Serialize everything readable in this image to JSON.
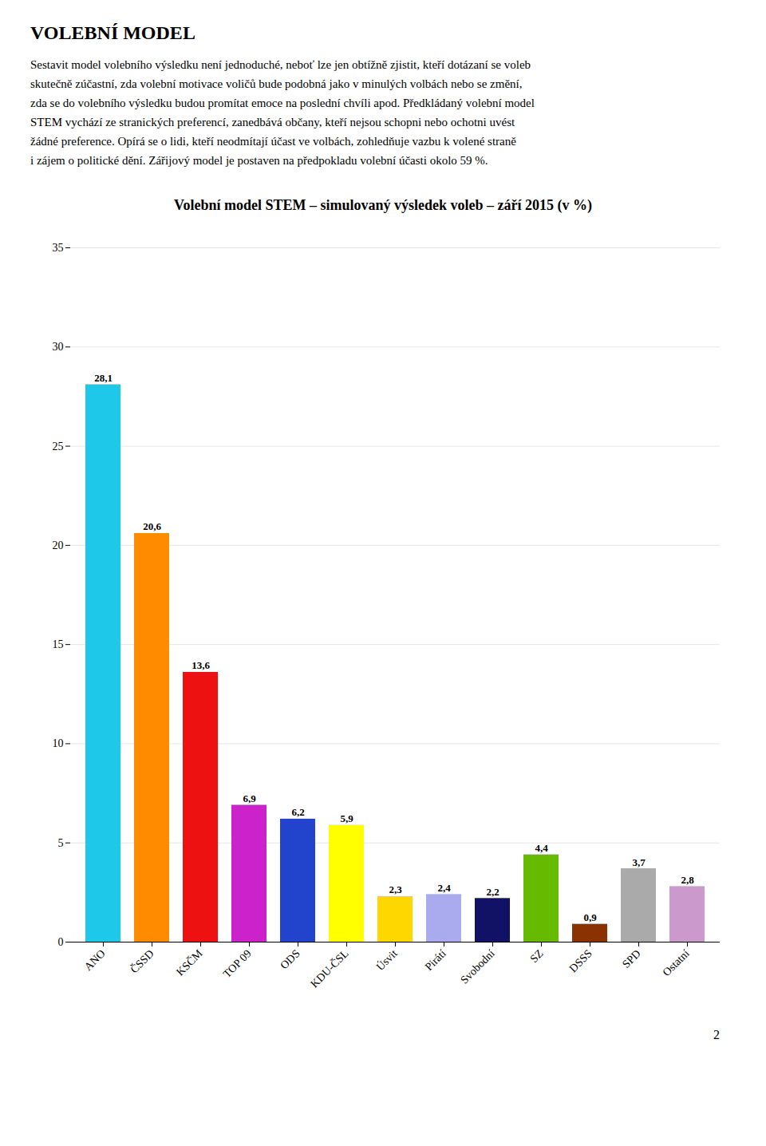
{
  "chart_data": {
    "type": "bar",
    "title": "Volební model STEM – simulovaný výsledek voleb – září 2015 (v %)",
    "categories": [
      "ANO",
      "ČSSD",
      "KSČM",
      "TOP 09",
      "ODS",
      "KDU-ČSL",
      "Úsvit",
      "Pirátí",
      "Svobodní",
      "SZ",
      "DSSS",
      "SPD",
      "Ostatní"
    ],
    "values": [
      28.1,
      20.6,
      13.6,
      6.9,
      6.2,
      5.9,
      2.3,
      2.4,
      2.2,
      4.4,
      0.9,
      3.7,
      2.8
    ],
    "value_labels": [
      "28,1",
      "20,6",
      "13,6",
      "6,9",
      "6,2",
      "5,9",
      "2,3",
      "2,4",
      "2,2",
      "4,4",
      "0,9",
      "3,7",
      "2,8"
    ],
    "colors": [
      "#1EC8E8",
      "#FF8C00",
      "#EE1111",
      "#CC22CC",
      "#2244CC",
      "#FFFF00",
      "#FFD700",
      "#AAAAEE",
      "#111166",
      "#66BB00",
      "#8B3300",
      "#AAAAAA",
      "#CC99CC"
    ],
    "ylim": [
      0,
      35
    ],
    "yticks": [
      0,
      5,
      10,
      15,
      20,
      25,
      30,
      35
    ],
    "grid": true,
    "data_labels": true,
    "annotations": [
      "VOLEBNÍ MODEL",
      "Sestavit model volebního výsledku není jednoduché, neboť lze jen obtížně zjistit, kteří dotázaní se voleb",
      "skutečně zúčastní, zda volební motivace voličů bude podobná jako v minulých volbách nebo se změní,",
      "zda se do volebního výsledku budou promítat emoce na poslední chvíli apod. Předkládaný volební model",
      "STEM vychází ze stranických preferencí, zanedbává občany, kteří nejsou schopni nebo ochotni uvést",
      "žádné preference. Opírá se o lidi, kteří neodmítají účast ve volbách, zohledňuje vazbu k volené straně",
      "i zájem o politické dění. Zářijový model je postaven na předpokladu volební účasti okolo 59 %.",
      "2"
    ]
  }
}
